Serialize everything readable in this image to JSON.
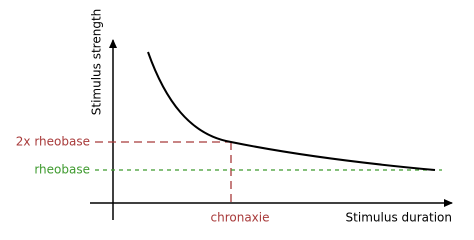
{
  "labels": {
    "y_axis": "Stimulus strength",
    "x_axis": "Stimulus duration",
    "double_rheobase": "2x rheobase",
    "rheobase": "rheobase",
    "chronaxie": "chronaxie"
  }
}
